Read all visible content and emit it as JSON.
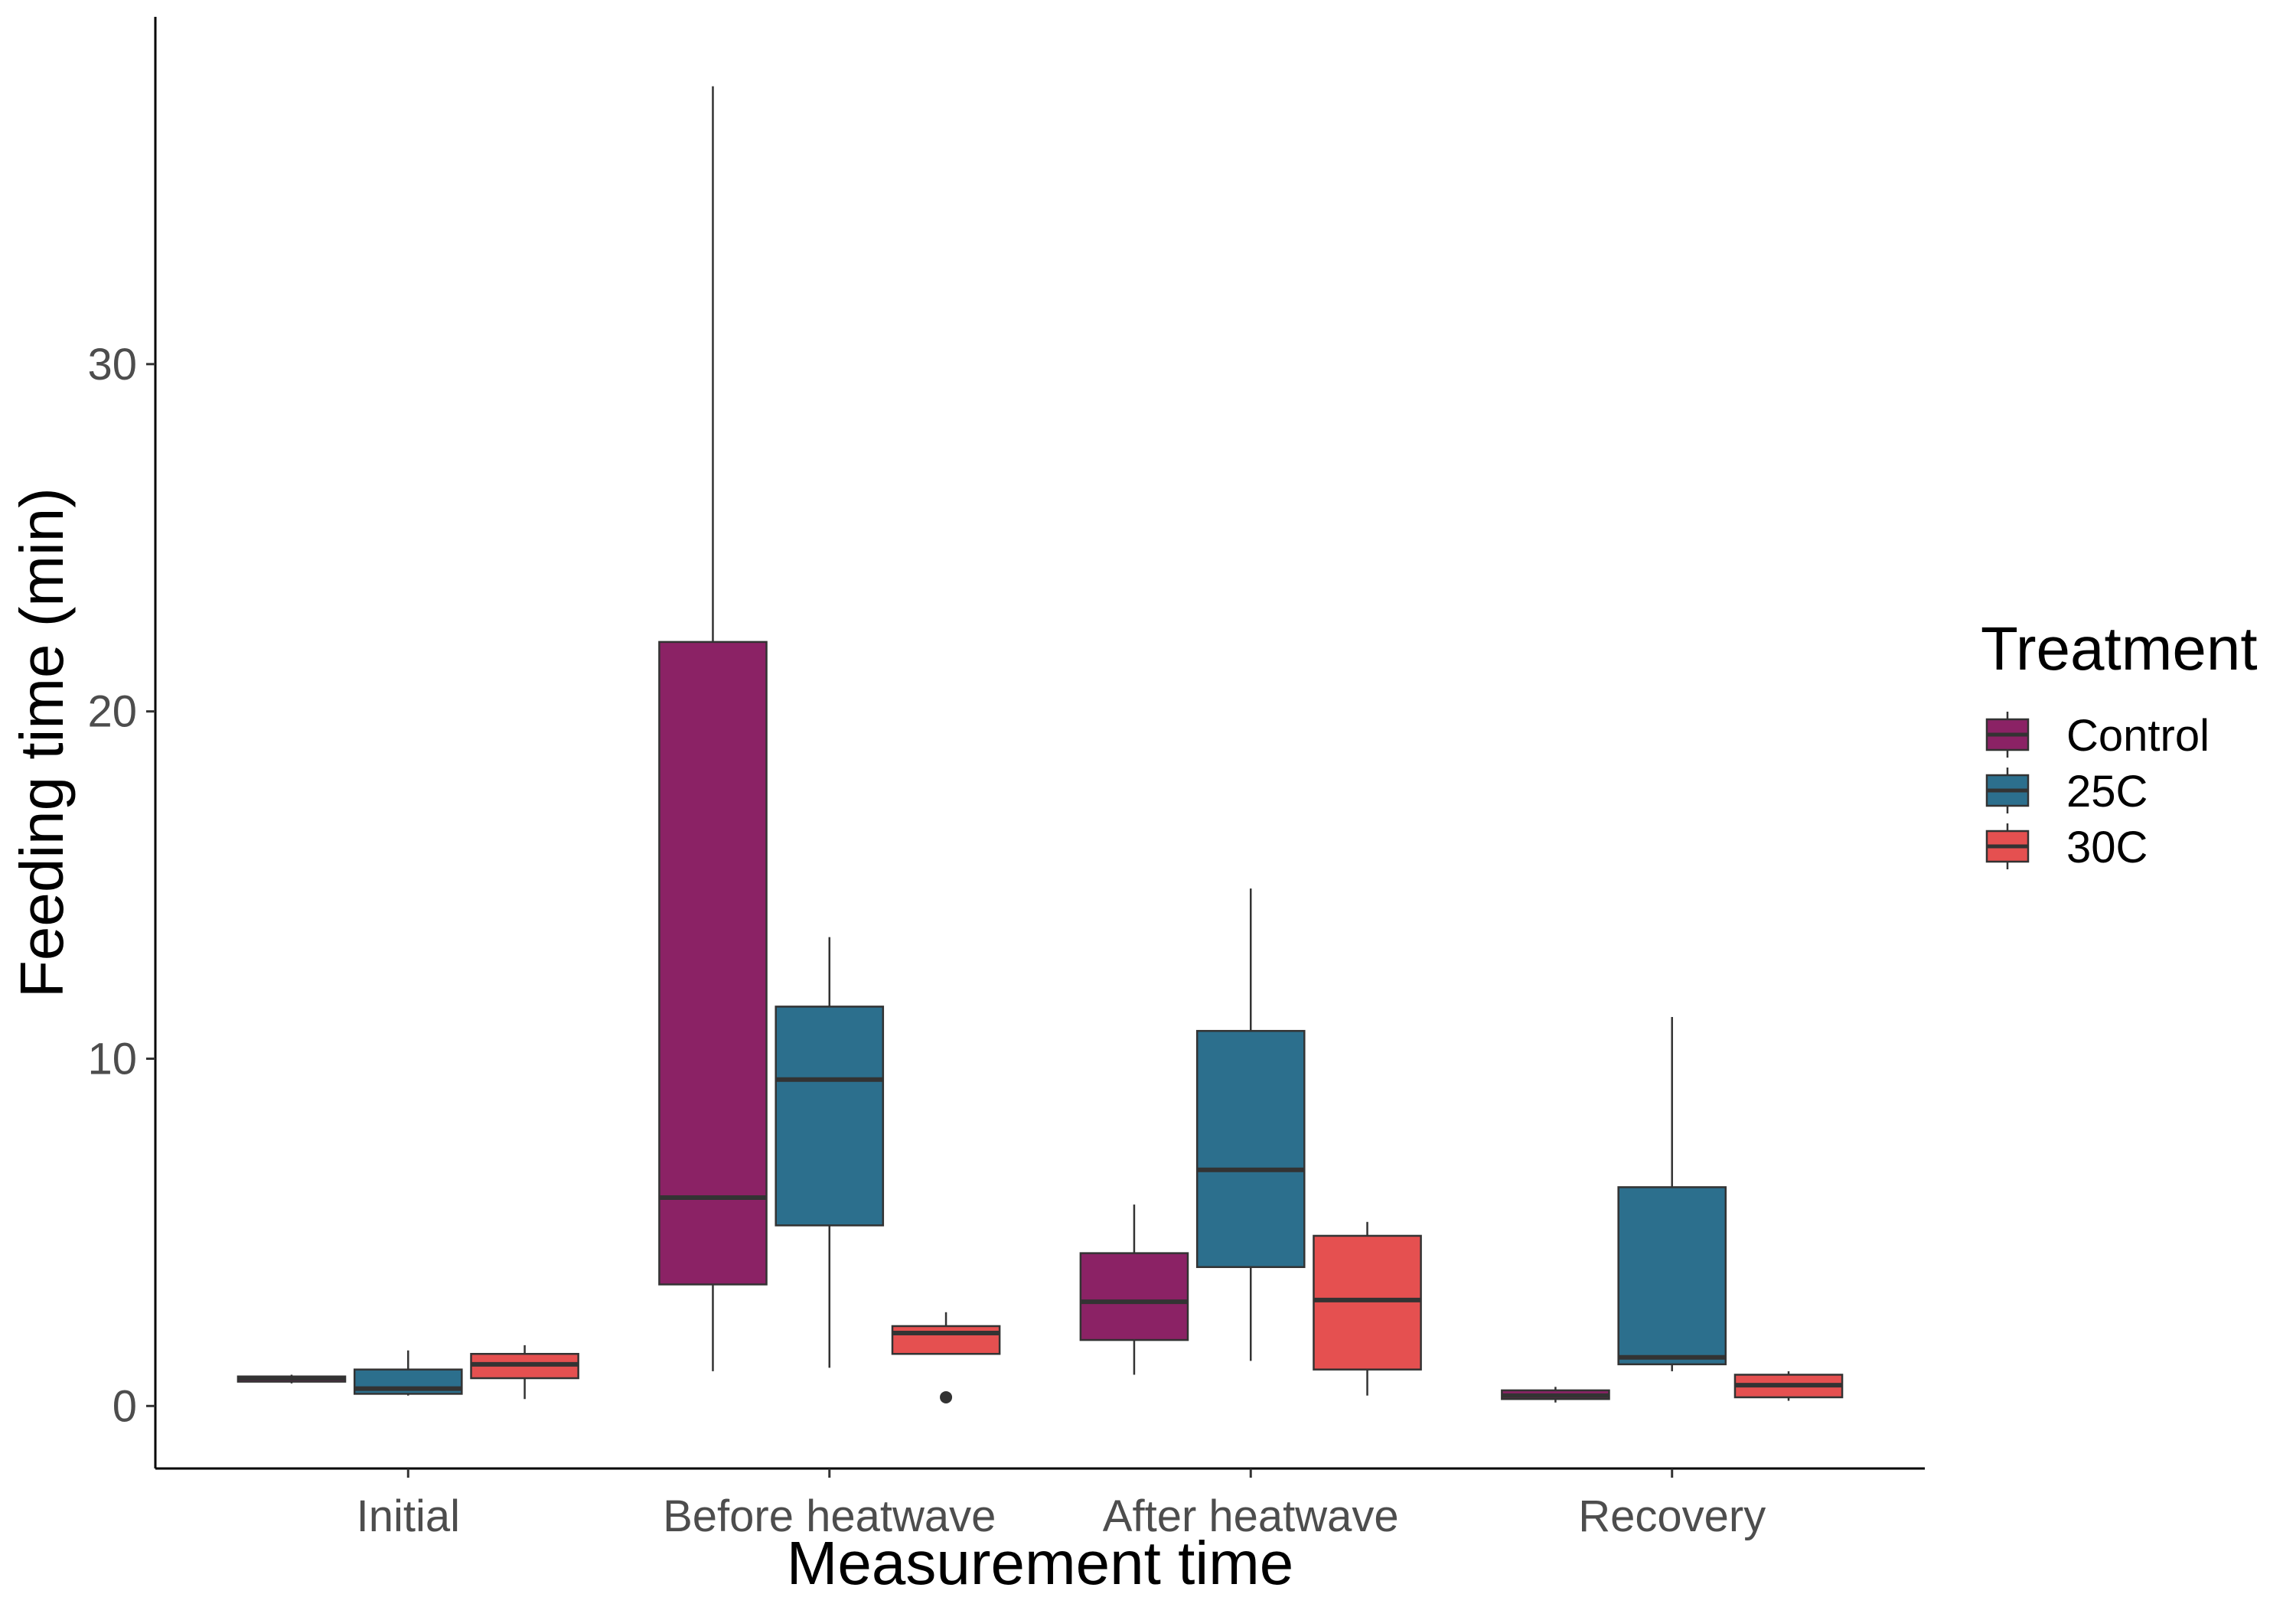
{
  "chart_data": {
    "type": "boxplot",
    "xlabel": "Measurement time",
    "ylabel": "Feeding time (min)",
    "ylim": [
      -1.8,
      40.0
    ],
    "yticks": [
      0,
      10,
      20,
      30
    ],
    "grid": false,
    "legend_position": "right",
    "legend_title": "Treatment",
    "categories": [
      "Initial",
      "Before heatwave",
      "After heatwave",
      "Recovery"
    ],
    "series": [
      {
        "name": "Control",
        "color": "#8B2265",
        "boxes": [
          {
            "min": 0.65,
            "q1": 0.7,
            "median": 0.8,
            "q3": 0.85,
            "max": 0.9,
            "outliers": []
          },
          {
            "min": 1.0,
            "q1": 3.5,
            "median": 6.0,
            "q3": 22.0,
            "max": 38.0,
            "outliers": []
          },
          {
            "min": 0.9,
            "q1": 1.9,
            "median": 3.0,
            "q3": 4.4,
            "max": 5.8,
            "outliers": []
          },
          {
            "min": 0.1,
            "q1": 0.2,
            "median": 0.3,
            "q3": 0.45,
            "max": 0.55,
            "outliers": []
          }
        ]
      },
      {
        "name": "25C",
        "color": "#2C6F8D",
        "boxes": [
          {
            "min": 0.3,
            "q1": 0.35,
            "median": 0.5,
            "q3": 1.05,
            "max": 1.6,
            "outliers": []
          },
          {
            "min": 1.1,
            "q1": 5.2,
            "median": 9.4,
            "q3": 11.5,
            "max": 13.5,
            "outliers": []
          },
          {
            "min": 1.3,
            "q1": 4.0,
            "median": 6.8,
            "q3": 10.8,
            "max": 14.9,
            "outliers": []
          },
          {
            "min": 1.0,
            "q1": 1.2,
            "median": 1.4,
            "q3": 6.3,
            "max": 11.2,
            "outliers": []
          }
        ]
      },
      {
        "name": "30C",
        "color": "#E55050",
        "boxes": [
          {
            "min": 0.2,
            "q1": 0.8,
            "median": 1.2,
            "q3": 1.5,
            "max": 1.75,
            "outliers": []
          },
          {
            "min": 1.5,
            "q1": 1.5,
            "median": 2.1,
            "q3": 2.3,
            "max": 2.7,
            "outliers": [
              0.25
            ]
          },
          {
            "min": 0.3,
            "q1": 1.05,
            "median": 3.05,
            "q3": 4.9,
            "max": 5.3,
            "outliers": []
          },
          {
            "min": 0.15,
            "q1": 0.25,
            "median": 0.6,
            "q3": 0.9,
            "max": 1.0,
            "outliers": []
          }
        ]
      }
    ]
  }
}
